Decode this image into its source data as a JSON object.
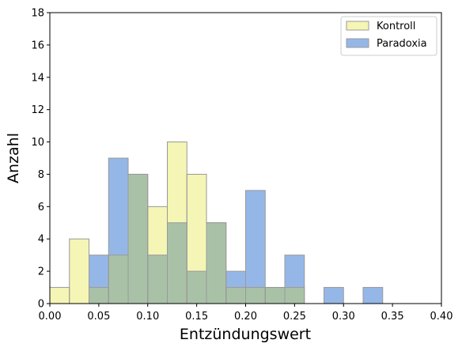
{
  "chart_data": {
    "type": "histogram",
    "xlabel": "Entzündungswert",
    "ylabel": "Anzahl",
    "xlim": [
      0.0,
      0.4
    ],
    "ylim": [
      0,
      18
    ],
    "x_ticks": [
      "0.00",
      "0.05",
      "0.10",
      "0.15",
      "0.20",
      "0.25",
      "0.30",
      "0.35",
      "0.40"
    ],
    "y_ticks": [
      "0",
      "2",
      "4",
      "6",
      "8",
      "10",
      "12",
      "14",
      "16",
      "18"
    ],
    "bin_edges": [
      0.0,
      0.02,
      0.04,
      0.06,
      0.08,
      0.1,
      0.12,
      0.14,
      0.16,
      0.18,
      0.2,
      0.22,
      0.24,
      0.26,
      0.28,
      0.3,
      0.32,
      0.34,
      0.36,
      0.38,
      0.4
    ],
    "grid": false,
    "legend_position": "top-right",
    "series": [
      {
        "name": "Kontroll",
        "color": "#f5f5b5",
        "values": [
          1,
          4,
          1,
          3,
          8,
          6,
          10,
          8,
          5,
          1,
          1,
          1,
          1,
          0,
          0,
          0,
          0,
          0,
          0,
          0
        ]
      },
      {
        "name": "Paradoxia",
        "color": "#95b7e8",
        "values": [
          0,
          0,
          3,
          9,
          8,
          3,
          5,
          2,
          5,
          2,
          7,
          1,
          3,
          0,
          1,
          0,
          1,
          0,
          0,
          0
        ]
      }
    ],
    "overlap_color": "#a9c2a7",
    "edge_color": "#999999"
  }
}
